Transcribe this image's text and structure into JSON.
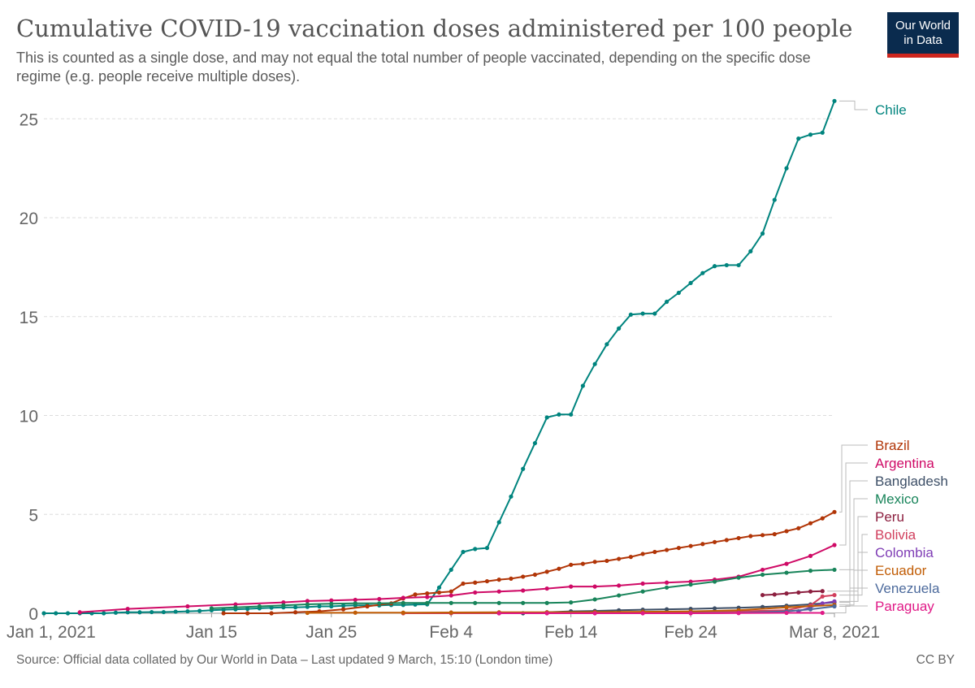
{
  "header": {
    "title": "Cumulative COVID-19 vaccination doses administered per 100 people",
    "subtitle": "This is counted as a single dose, and may not equal the total number of people vaccinated, depending on the specific dose regime (e.g. people receive multiple doses).",
    "logo_line1": "Our World",
    "logo_line2": "in Data",
    "logo_color": "#0a2b4e",
    "logo_accent": "#ce261e"
  },
  "footer": {
    "source": "Source: Official data collated by Our World in Data – Last updated 9 March, 15:10 (London time)",
    "license": "CC BY"
  },
  "chart_data": {
    "type": "line",
    "title": "Cumulative COVID-19 vaccination doses administered per 100 people",
    "xlabel": "",
    "ylabel": "",
    "xlim": [
      0,
      66
    ],
    "ylim": [
      0,
      26
    ],
    "grid": true,
    "x_ticks": [
      {
        "day": 0,
        "label": "Jan 1, 2021"
      },
      {
        "day": 14,
        "label": "Jan 15"
      },
      {
        "day": 24,
        "label": "Jan 25"
      },
      {
        "day": 34,
        "label": "Feb 4"
      },
      {
        "day": 44,
        "label": "Feb 14"
      },
      {
        "day": 54,
        "label": "Feb 24"
      },
      {
        "day": 66,
        "label": "Mar 8, 2021"
      }
    ],
    "y_ticks": [
      0,
      5,
      10,
      15,
      20,
      25
    ],
    "legend_position": "right",
    "series": [
      {
        "name": "Chile",
        "color": "#00847e",
        "x": [
          0,
          1,
          2,
          3,
          4,
          5,
          6,
          7,
          8,
          9,
          10,
          11,
          12,
          13,
          14,
          15,
          16,
          17,
          18,
          19,
          20,
          21,
          22,
          23,
          24,
          25,
          26,
          27,
          28,
          29,
          30,
          31,
          32,
          33,
          34,
          35,
          36,
          37,
          38,
          39,
          40,
          41,
          42,
          43,
          44,
          45,
          46,
          47,
          48,
          49,
          50,
          51,
          52,
          53,
          54,
          55,
          56,
          57,
          58,
          59,
          60,
          61,
          62,
          63,
          64,
          65,
          66
        ],
        "y": [
          0,
          0,
          0,
          0,
          0,
          0,
          0.03,
          0.05,
          0.05,
          0.06,
          0.06,
          0.08,
          0.1,
          0.12,
          0.15,
          0.18,
          0.2,
          0.22,
          0.25,
          0.28,
          0.3,
          0.3,
          0.32,
          0.35,
          0.35,
          0.38,
          0.4,
          0.4,
          0.4,
          0.42,
          0.42,
          0.44,
          0.45,
          1.3,
          2.2,
          3.1,
          3.25,
          3.3,
          4.6,
          5.9,
          7.3,
          8.6,
          9.9,
          10.05,
          10.05,
          11.5,
          12.6,
          13.6,
          14.4,
          15.1,
          15.15,
          15.15,
          15.75,
          16.2,
          16.7,
          17.2,
          17.55,
          17.6,
          17.6,
          18.3,
          19.2,
          20.9,
          22.5,
          24.0,
          24.2,
          24.3,
          25.9
        ]
      },
      {
        "name": "Brazil",
        "color": "#b13507",
        "x": [
          15,
          17,
          19,
          21,
          23,
          25,
          27,
          29,
          30,
          31,
          32,
          33,
          34,
          35,
          36,
          37,
          38,
          39,
          40,
          41,
          42,
          43,
          44,
          45,
          46,
          47,
          48,
          49,
          50,
          51,
          52,
          53,
          54,
          55,
          56,
          57,
          58,
          59,
          60,
          61,
          62,
          63,
          64,
          65,
          66
        ],
        "y": [
          0,
          0,
          0,
          0.05,
          0.1,
          0.2,
          0.35,
          0.5,
          0.75,
          0.95,
          1.0,
          1.05,
          1.1,
          1.5,
          1.55,
          1.62,
          1.7,
          1.75,
          1.85,
          1.95,
          2.1,
          2.25,
          2.45,
          2.5,
          2.6,
          2.65,
          2.75,
          2.85,
          3.0,
          3.1,
          3.2,
          3.3,
          3.4,
          3.5,
          3.6,
          3.7,
          3.8,
          3.9,
          3.95,
          4.0,
          4.15,
          4.3,
          4.55,
          4.8,
          5.12
        ]
      },
      {
        "name": "Argentina",
        "color": "#cf0a66",
        "x": [
          3,
          7,
          12,
          16,
          20,
          22,
          24,
          26,
          28,
          30,
          32,
          34,
          36,
          38,
          40,
          42,
          44,
          46,
          48,
          50,
          52,
          54,
          56,
          58,
          60,
          62,
          64,
          66
        ],
        "y": [
          0.05,
          0.22,
          0.35,
          0.45,
          0.55,
          0.62,
          0.65,
          0.68,
          0.72,
          0.78,
          0.82,
          0.9,
          1.05,
          1.1,
          1.15,
          1.25,
          1.35,
          1.35,
          1.4,
          1.5,
          1.55,
          1.6,
          1.7,
          1.85,
          2.2,
          2.5,
          2.9,
          3.45
        ]
      },
      {
        "name": "Bangladesh",
        "color": "#3c4e66",
        "x": [
          40,
          42,
          44,
          46,
          48,
          50,
          52,
          54,
          56,
          58,
          60,
          62,
          64,
          66
        ],
        "y": [
          0,
          0.05,
          0.1,
          0.12,
          0.15,
          0.18,
          0.2,
          0.22,
          0.25,
          0.28,
          0.32,
          0.38,
          0.45,
          0.55
        ]
      },
      {
        "name": "Mexico",
        "color": "#18845a",
        "x": [
          14,
          16,
          18,
          20,
          22,
          24,
          26,
          28,
          30,
          32,
          34,
          36,
          38,
          40,
          42,
          44,
          46,
          48,
          50,
          52,
          54,
          56,
          58,
          60,
          62,
          64,
          66
        ],
        "y": [
          0.25,
          0.3,
          0.35,
          0.4,
          0.45,
          0.48,
          0.5,
          0.5,
          0.52,
          0.52,
          0.52,
          0.52,
          0.52,
          0.52,
          0.52,
          0.55,
          0.7,
          0.9,
          1.1,
          1.3,
          1.45,
          1.6,
          1.8,
          1.95,
          2.05,
          2.15,
          2.2
        ]
      },
      {
        "name": "Peru",
        "color": "#8c1f3f",
        "x": [
          60,
          61,
          62,
          63,
          64,
          65
        ],
        "y": [
          0.92,
          0.95,
          1.0,
          1.05,
          1.1,
          1.12
        ]
      },
      {
        "name": "Bolivia",
        "color": "#d13f5d",
        "x": [
          30,
          34,
          38,
          42,
          46,
          50,
          54,
          58,
          62,
          64,
          65,
          66
        ],
        "y": [
          0,
          0,
          0,
          0.02,
          0.03,
          0.05,
          0.08,
          0.1,
          0.15,
          0.4,
          0.85,
          0.92
        ]
      },
      {
        "name": "Colombia",
        "color": "#7f3db5",
        "x": [
          63,
          64,
          65,
          66
        ],
        "y": [
          0.1,
          0.3,
          0.5,
          0.6
        ]
      },
      {
        "name": "Ecuador",
        "color": "#c15d06",
        "x": [
          22,
          26,
          30,
          34,
          38,
          42,
          46,
          50,
          54,
          58,
          62,
          66
        ],
        "y": [
          0.02,
          0.03,
          0.03,
          0.04,
          0.05,
          0.05,
          0.06,
          0.08,
          0.1,
          0.15,
          0.3,
          0.42
        ]
      },
      {
        "name": "Venezuela",
        "color": "#4c6a9c",
        "x": [
          54,
          58,
          62,
          64,
          66
        ],
        "y": [
          0.01,
          0.02,
          0.1,
          0.2,
          0.35
        ]
      },
      {
        "name": "Paraguay",
        "color": "#e01a87",
        "x": [
          38,
          42,
          46,
          50,
          54,
          58,
          62,
          65
        ],
        "y": [
          0,
          0,
          0,
          0,
          0,
          0.01,
          0.02,
          0.02
        ]
      }
    ]
  }
}
